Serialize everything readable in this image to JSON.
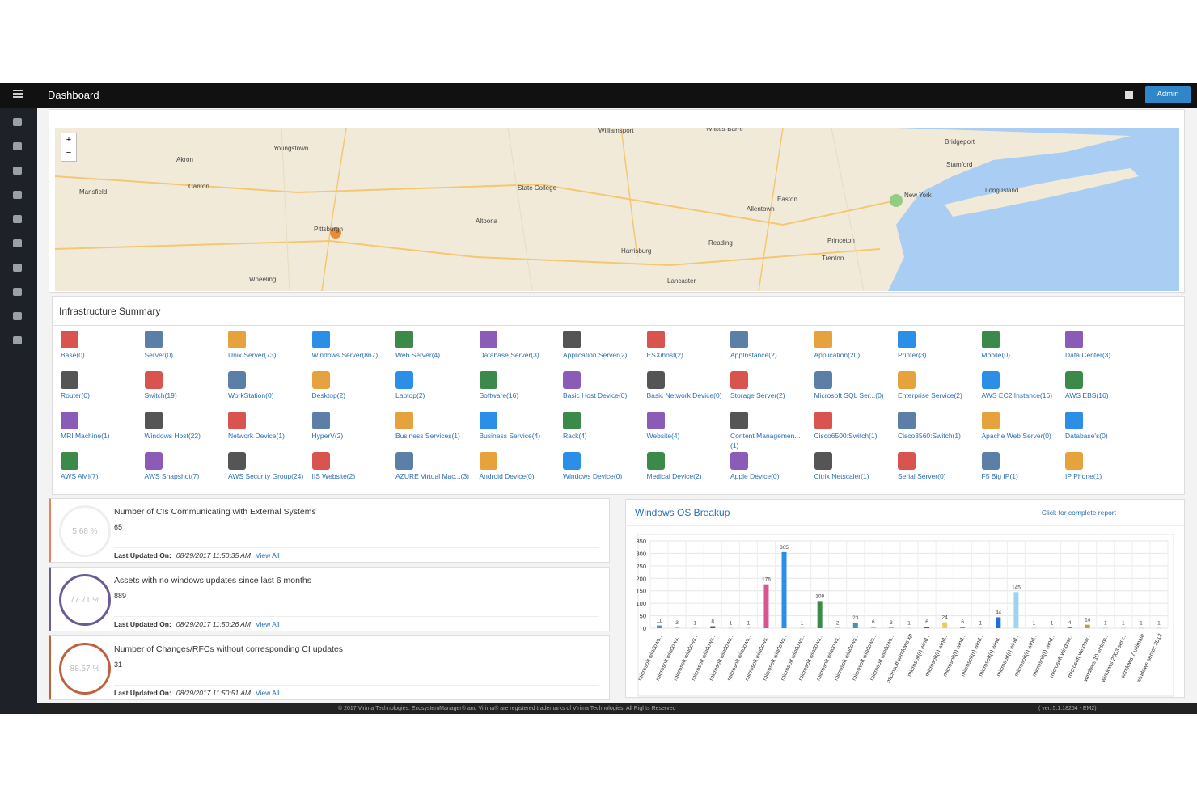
{
  "header": {
    "title": "Dashboard",
    "user": "Admin"
  },
  "map": {
    "zoom_in": "+",
    "zoom_out": "−",
    "places": [
      "Youngstown",
      "Akron",
      "Canton",
      "Mansfield",
      "Wheeling",
      "Pittsburgh",
      "Altoona",
      "State College",
      "Williamsport",
      "Harrisburg",
      "Lancaster",
      "Reading",
      "Allentown",
      "Easton",
      "Wilkes-Barre",
      "Trenton",
      "Princeton",
      "New York",
      "Bridgeport",
      "Stamford",
      "Long Island"
    ]
  },
  "infrastructure": {
    "title": "Infrastructure Summary",
    "items": [
      "Base(0)",
      "Server(0)",
      "Unix Server(73)",
      "Windows Server(867)",
      "Web Server(4)",
      "Database Server(3)",
      "Application Server(2)",
      "ESXihost(2)",
      "AppInstance(2)",
      "Application(20)",
      "Printer(3)",
      "Mobile(0)",
      "Data Center(3)",
      "Router(0)",
      "Switch(19)",
      "WorkStation(0)",
      "Desktop(2)",
      "Laptop(2)",
      "Software(16)",
      "Basic Host Device(0)",
      "Basic Network Device(0)",
      "Storage Server(2)",
      "Microsoft SQL Ser...(0)",
      "Enterprise Service(2)",
      "AWS EC2 Instance(16)",
      "AWS EBS(16)",
      "MRI Machine(1)",
      "Windows Host(22)",
      "Network Device(1)",
      "HyperV(2)",
      "Business Services(1)",
      "Business Service(4)",
      "Rack(4)",
      "Website(4)",
      "Content Managemen...(1)",
      "Cisco6500:Switch(1)",
      "Cisco3560:Switch(1)",
      "Apache Web Server(0)",
      "Database's(0)",
      "AWS AMI(7)",
      "AWS Snapshot(7)",
      "AWS Security Group(24)",
      "IIS Website(2)",
      "AZURE Virtual Mac...(3)",
      "Android Device(0)",
      "Windows Device(0)",
      "Medical Device(2)",
      "Apple Device(0)",
      "Citrix Netscaler(1)",
      "Serial Server(0)",
      "F5 Big IP(1)",
      "IP Phone(1)"
    ]
  },
  "cards": [
    {
      "percent": "5.68 %",
      "title": "Number of CIs Communicating with External Systems",
      "count": "65",
      "updated_label": "Last Updated On:",
      "updated": "08/29/2017 11:50:35 AM",
      "link": "View All"
    },
    {
      "percent": "77.71 %",
      "title": "Assets with no windows updates since last 6 months",
      "count": "889",
      "updated_label": "Last Updated On:",
      "updated": "08/29/2017 11:50:26 AM",
      "link": "View All"
    },
    {
      "percent": "88.57 %",
      "title": "Number of Changes/RFCs without corresponding CI updates",
      "count": "31",
      "updated_label": "Last Updated On:",
      "updated": "08/29/2017 11:50:51 AM",
      "link": "View All"
    }
  ],
  "chart_data": {
    "type": "bar",
    "title": "Windows OS Breakup",
    "link": "Click for complete report",
    "categories": [
      "microsoft windows...",
      "microsoft windows...",
      "microsoft windows...",
      "microsoft windows...",
      "microsoft windows...",
      "microsoft windows...",
      "microsoft windows...",
      "microsoft windows...",
      "microsoft windows...",
      "microsoft windows...",
      "microsoft windows...",
      "microsoft windows...",
      "microsoft windows...",
      "microsoft windows...",
      "microsoft windows xp",
      "microsoft(r) wind...",
      "microsoft(r) wind...",
      "microsoft(r) wind...",
      "microsoft(r) wind...",
      "microsoft(r) wind...",
      "microsoft(r) wind...",
      "microsoft(r) wind...",
      "microsoft(r) wind...",
      "microsoft window...",
      "microsoft window...",
      "windows 10 enterp...",
      "windows 2003 serv...",
      "windows 7 ultimate",
      "windows server 2012"
    ],
    "values": [
      11,
      3,
      1,
      8,
      1,
      1,
      176,
      305,
      1,
      109,
      2,
      23,
      6,
      3,
      1,
      6,
      24,
      6,
      1,
      44,
      145,
      1,
      1,
      4,
      14,
      1,
      1,
      1,
      1
    ],
    "colors": [
      "#4a90d9",
      "#9bc",
      "#9bc",
      "#556",
      "#9bc",
      "#9bc",
      "#d9558f",
      "#2b8fe8",
      "#9bc",
      "#3c8a4a",
      "#9bc",
      "#4f8fb0",
      "#9cd",
      "#9bc",
      "#9bc",
      "#555",
      "#e8d060",
      "#a86",
      "#9bc",
      "#1f6fd6",
      "#9fd4f0",
      "#9bc",
      "#9bc",
      "#c66",
      "#b9a040",
      "#9bc",
      "#9bc",
      "#9bc",
      "#9bc"
    ],
    "ylim": [
      0,
      350
    ],
    "yticks": [
      0,
      50,
      100,
      150,
      200,
      250,
      300,
      350
    ],
    "grid": true
  },
  "footer": {
    "copyright": "© 2017 Virima Technologies. EcosystemManager® and Virima® are registered trademarks of Virima Technologies. All Rights Reserved",
    "version": "( ver. 5.1.18254 - EM2)"
  }
}
